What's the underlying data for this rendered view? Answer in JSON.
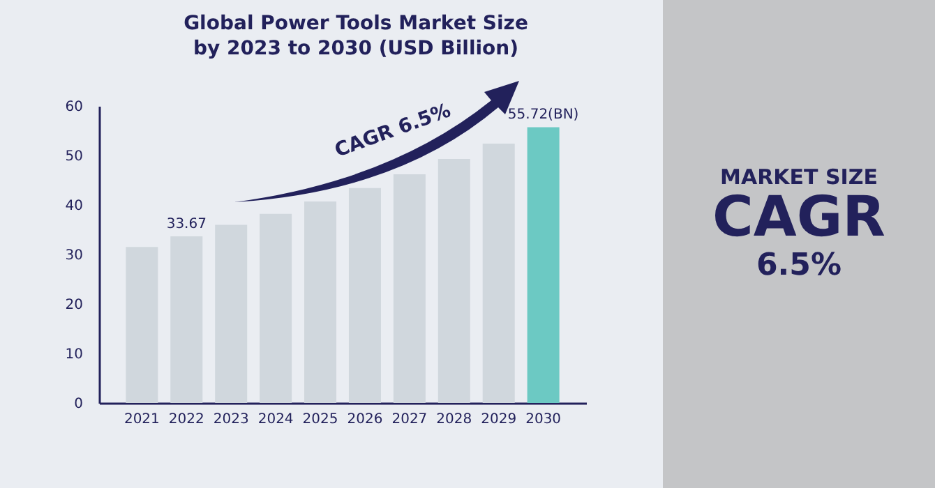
{
  "chart_data": {
    "type": "bar",
    "title": "Global Power Tools Market Size by 2023 to 2030 (USD Billion)",
    "categories": [
      "2021",
      "2022",
      "2023",
      "2024",
      "2025",
      "2026",
      "2027",
      "2028",
      "2029",
      "2030"
    ],
    "values": [
      31.5,
      33.67,
      36.0,
      38.2,
      40.7,
      43.4,
      46.2,
      49.3,
      52.4,
      55.72
    ],
    "colors": [
      "#d0d7dd",
      "#d0d7dd",
      "#d0d7dd",
      "#d0d7dd",
      "#d0d7dd",
      "#d0d7dd",
      "#d0d7dd",
      "#d0d7dd",
      "#d0d7dd",
      "#6cc9c3"
    ],
    "value_labels": [
      null,
      "33.67",
      null,
      null,
      null,
      null,
      null,
      null,
      null,
      "55.72(BN)"
    ],
    "ylim": [
      0,
      60
    ],
    "yticks": [
      0,
      10,
      20,
      30,
      40,
      50,
      60
    ],
    "annotations": [
      "CAGR 6.5%",
      "MARKET SIZE",
      "CAGR",
      "6.5%"
    ]
  }
}
